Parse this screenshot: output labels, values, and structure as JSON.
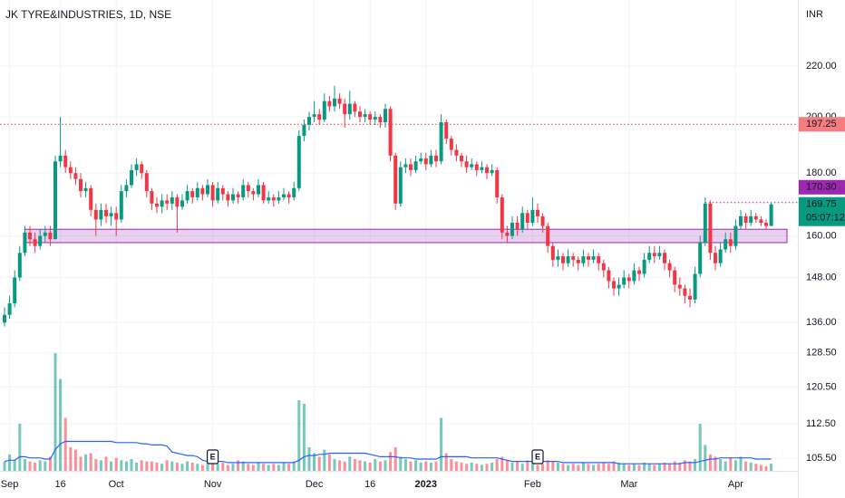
{
  "chart_data": {
    "type": "candlestick",
    "title": "JK TYRE&INDUSTRIES, 1D, NSE",
    "currency": "INR",
    "open": [
      136,
      138,
      141,
      148,
      155,
      161,
      159,
      157,
      160,
      161,
      159,
      184,
      186,
      182,
      180,
      178,
      174,
      175,
      168,
      165,
      168,
      166,
      167,
      165,
      174,
      176,
      181,
      183,
      180,
      174,
      170,
      169,
      171,
      170,
      172,
      169,
      171,
      174,
      172,
      175,
      173,
      176,
      171,
      175,
      173,
      171,
      173,
      172,
      176,
      174,
      173,
      176,
      171,
      172,
      171,
      172,
      173,
      172,
      175,
      193,
      197,
      200,
      201,
      199,
      206,
      204,
      207,
      205,
      201,
      205,
      202,
      200,
      201,
      199,
      200,
      198,
      203,
      186,
      170,
      182,
      183,
      181,
      184,
      185,
      183,
      186,
      184,
      198,
      192,
      188,
      186,
      184,
      182,
      183,
      181,
      182,
      180,
      181,
      172,
      161,
      160,
      164,
      162,
      167,
      164,
      168,
      166,
      163,
      157,
      153,
      154,
      152,
      154,
      153,
      152,
      154,
      153,
      154,
      152,
      150,
      147,
      145,
      146,
      148,
      147,
      150,
      149,
      153,
      155,
      154,
      155,
      152,
      150,
      146,
      145,
      143,
      142,
      149,
      158,
      170,
      155,
      152,
      156,
      159,
      157,
      163,
      166,
      164,
      166,
      165,
      164,
      163
    ],
    "high": [
      140,
      143,
      150,
      157,
      163,
      163,
      161,
      162,
      163,
      163,
      186,
      200,
      188,
      184,
      182,
      180,
      177,
      176,
      170,
      170,
      170,
      169,
      169,
      176,
      178,
      183,
      185,
      184,
      181,
      175,
      172,
      173,
      173,
      174,
      173,
      173,
      176,
      175,
      177,
      176,
      178,
      177,
      177,
      176,
      174,
      175,
      174,
      178,
      177,
      175,
      178,
      177,
      174,
      173,
      174,
      175,
      174,
      177,
      195,
      199,
      202,
      206,
      203,
      209,
      208,
      212,
      209,
      207,
      210,
      206,
      204,
      203,
      202,
      202,
      201,
      205,
      204,
      187,
      184,
      185,
      185,
      186,
      187,
      187,
      188,
      188,
      201,
      199,
      193,
      190,
      187,
      186,
      185,
      184,
      184,
      183,
      183,
      182,
      173,
      163,
      166,
      166,
      169,
      168,
      172,
      170,
      167,
      164,
      158,
      156,
      155,
      156,
      155,
      154,
      156,
      155,
      156,
      155,
      153,
      151,
      148,
      148,
      150,
      149,
      152,
      151,
      155,
      157,
      157,
      157,
      156,
      153,
      151,
      148,
      146,
      145,
      151,
      160,
      172,
      171,
      157,
      158,
      161,
      161,
      165,
      168,
      167,
      168,
      167,
      166,
      165,
      170.3
    ],
    "low": [
      135,
      137,
      140,
      147,
      154,
      157,
      155,
      156,
      158,
      157,
      159,
      182,
      180,
      178,
      176,
      172,
      172,
      166,
      160,
      163,
      164,
      163,
      160,
      164,
      172,
      175,
      179,
      178,
      172,
      168,
      167,
      167,
      168,
      168,
      161,
      168,
      170,
      170,
      171,
      171,
      172,
      169,
      170,
      171,
      169,
      170,
      170,
      171,
      172,
      171,
      172,
      170,
      170,
      169,
      170,
      171,
      170,
      171,
      174,
      191,
      195,
      198,
      197,
      198,
      202,
      202,
      203,
      196,
      199,
      200,
      198,
      198,
      197,
      197,
      196,
      196,
      184,
      168,
      169,
      180,
      179,
      180,
      183,
      181,
      182,
      182,
      183,
      190,
      186,
      184,
      182,
      180,
      181,
      179,
      180,
      178,
      179,
      170,
      159,
      158,
      159,
      160,
      161,
      162,
      163,
      164,
      161,
      155,
      151,
      151,
      150,
      151,
      151,
      150,
      151,
      151,
      152,
      150,
      148,
      145,
      143,
      143,
      145,
      145,
      146,
      147,
      148,
      152,
      152,
      153,
      150,
      148,
      144,
      143,
      141,
      140,
      141,
      148,
      157,
      153,
      150,
      151,
      155,
      155,
      156,
      162,
      162,
      163,
      164,
      163,
      162,
      163
    ],
    "close": [
      138,
      141,
      148,
      155,
      161,
      159,
      157,
      160,
      161,
      159,
      184,
      186,
      182,
      180,
      178,
      174,
      175,
      168,
      165,
      168,
      166,
      167,
      165,
      174,
      176,
      181,
      183,
      180,
      174,
      170,
      169,
      171,
      170,
      172,
      169,
      171,
      174,
      172,
      175,
      173,
      176,
      171,
      175,
      173,
      171,
      173,
      172,
      176,
      174,
      173,
      176,
      171,
      172,
      171,
      172,
      173,
      172,
      175,
      193,
      197,
      200,
      201,
      199,
      206,
      204,
      207,
      205,
      201,
      205,
      202,
      200,
      201,
      199,
      200,
      198,
      203,
      186,
      170,
      182,
      183,
      181,
      184,
      185,
      183,
      186,
      184,
      198,
      192,
      188,
      186,
      184,
      182,
      183,
      181,
      182,
      180,
      181,
      172,
      161,
      160,
      164,
      162,
      167,
      164,
      168,
      166,
      163,
      157,
      153,
      154,
      152,
      154,
      153,
      152,
      154,
      153,
      154,
      152,
      150,
      147,
      145,
      146,
      148,
      147,
      150,
      149,
      153,
      155,
      154,
      155,
      152,
      150,
      146,
      145,
      143,
      142,
      149,
      158,
      170,
      155,
      152,
      156,
      159,
      157,
      163,
      166,
      164,
      166,
      165,
      164,
      163,
      169.75
    ],
    "volume": [
      8,
      14,
      9,
      40,
      10,
      8,
      7,
      9,
      8,
      12,
      100,
      78,
      45,
      20,
      18,
      12,
      14,
      15,
      10,
      9,
      12,
      8,
      11,
      9,
      8,
      10,
      7,
      9,
      8,
      8,
      7,
      6,
      9,
      8,
      7,
      6,
      8,
      7,
      6,
      5,
      7,
      8,
      6,
      7,
      5,
      6,
      9,
      8,
      6,
      5,
      7,
      6,
      5,
      6,
      5,
      7,
      6,
      8,
      60,
      57,
      20,
      15,
      12,
      18,
      14,
      10,
      9,
      8,
      12,
      10,
      9,
      8,
      7,
      10,
      8,
      9,
      16,
      20,
      12,
      10,
      8,
      9,
      7,
      8,
      7,
      8,
      45,
      15,
      10,
      8,
      7,
      6,
      7,
      6,
      5,
      6,
      7,
      10,
      12,
      9,
      7,
      8,
      6,
      9,
      7,
      5,
      6,
      9,
      8,
      7,
      6,
      5,
      6,
      5,
      7,
      6,
      5,
      6,
      7,
      6,
      8,
      7,
      6,
      5,
      6,
      5,
      7,
      6,
      5,
      6,
      7,
      6,
      8,
      7,
      9,
      8,
      10,
      40,
      22,
      14,
      12,
      10,
      8,
      11,
      9,
      12,
      8,
      7,
      6,
      5,
      4,
      6
    ],
    "volume_ma": [
      8,
      9,
      9,
      12,
      12,
      11,
      11,
      11,
      10,
      10,
      18,
      23,
      25,
      25,
      25,
      25,
      25,
      25,
      25,
      25,
      25,
      25,
      24,
      24,
      24,
      24,
      24,
      23,
      23,
      22,
      22,
      22,
      21,
      16,
      15,
      14,
      13,
      13,
      12,
      9,
      8,
      8,
      8,
      8,
      7,
      7,
      7,
      7,
      7,
      7,
      7,
      7,
      7,
      7,
      7,
      7,
      7,
      7,
      9,
      12,
      13,
      13,
      14,
      14,
      15,
      15,
      15,
      15,
      15,
      15,
      15,
      15,
      14,
      13,
      12,
      12,
      12,
      12,
      11,
      11,
      11,
      10,
      10,
      10,
      10,
      10,
      12,
      12,
      12,
      12,
      12,
      12,
      11,
      11,
      11,
      11,
      11,
      11,
      10,
      9,
      8,
      8,
      8,
      8,
      8,
      8,
      8,
      8,
      8,
      8,
      7,
      7,
      7,
      7,
      7,
      7,
      7,
      7,
      7,
      7,
      7,
      6,
      6,
      6,
      6,
      6,
      6,
      6,
      6,
      6,
      6,
      6,
      6,
      6,
      7,
      7,
      7,
      8,
      9,
      10,
      10,
      11,
      11,
      11,
      11,
      11,
      11,
      11,
      10,
      10,
      10,
      10
    ],
    "vlim": [
      0,
      100
    ],
    "ylim": [
      103,
      249
    ],
    "log": true,
    "grid": true,
    "yticks": [
      {
        "value": 105.5,
        "label": "105.50"
      },
      {
        "value": 112.5,
        "label": "112.50"
      },
      {
        "value": 120.5,
        "label": "120.50"
      },
      {
        "value": 128.5,
        "label": "128.50"
      },
      {
        "value": 136,
        "label": "136.00"
      },
      {
        "value": 148,
        "label": "148.00"
      },
      {
        "value": 160,
        "label": "160.00"
      },
      {
        "value": 180,
        "label": "180.00"
      },
      {
        "value": 200,
        "label": "200.00"
      },
      {
        "value": 220,
        "label": "220.00"
      }
    ],
    "xticks": [
      {
        "value": 1,
        "label": "Sep"
      },
      {
        "value": 11,
        "label": "16"
      },
      {
        "value": 22,
        "label": "Oct"
      },
      {
        "value": 41,
        "label": "Nov"
      },
      {
        "value": 61,
        "label": "Dec"
      },
      {
        "value": 72,
        "label": "16"
      },
      {
        "value": 83,
        "label": "2023"
      },
      {
        "value": 104,
        "label": "Feb"
      },
      {
        "value": 123,
        "label": "Mar"
      },
      {
        "value": 144,
        "label": "Apr"
      }
    ],
    "levels": [
      {
        "value": 197.25,
        "color": "#f23645",
        "badge": "#f77c80"
      }
    ],
    "marker_line": {
      "value": 170.3,
      "label": "170.30",
      "from": 138,
      "color": "#9c27b0"
    },
    "zone": {
      "low": 158,
      "high": 162,
      "from": 4,
      "color": "#9c27b0"
    },
    "countdown": "05:07:12",
    "earnings": [
      41,
      105
    ],
    "earnings_label": "E",
    "up_color": "#089981",
    "down_color": "#f23645",
    "ma_color": "#2962ff"
  }
}
